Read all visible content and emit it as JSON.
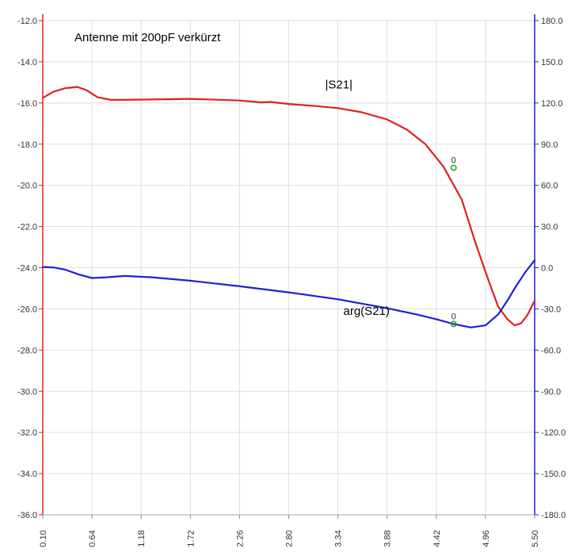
{
  "chart_data": {
    "type": "line",
    "title": "Antenne mit 200pF verkürzt",
    "grid": true,
    "x_axis": {
      "range": [
        0.1,
        5.5
      ],
      "ticks": [
        "0.10",
        "0.64",
        "1.18",
        "1.72",
        "2.26",
        "2.80",
        "3.34",
        "3.88",
        "4.42",
        "4.96",
        "5.50"
      ]
    },
    "y_axis_left": {
      "range": [
        -36.0,
        -12.0
      ],
      "color": "#e02020",
      "ticks": [
        "-12.0",
        "-14.0",
        "-16.0",
        "-18.0",
        "-20.0",
        "-22.0",
        "-24.0",
        "-26.0",
        "-28.0",
        "-30.0",
        "-32.0",
        "-34.0",
        "-36.0"
      ]
    },
    "y_axis_right": {
      "range": [
        -180.0,
        180.0
      ],
      "color": "#2020d0",
      "ticks": [
        "180.0",
        "150.0",
        "120.0",
        "90.0",
        "60.0",
        "30.0",
        "0.0",
        "-30.0",
        "-60.0",
        "-90.0",
        "-120.0",
        "-150.0",
        "-180.0"
      ]
    },
    "series": [
      {
        "name": "|S21|",
        "axis": "left",
        "color": "#e02020",
        "x": [
          0.1,
          0.22,
          0.35,
          0.48,
          0.58,
          0.7,
          0.85,
          1.0,
          1.3,
          1.72,
          2.26,
          2.5,
          2.6,
          2.8,
          3.1,
          3.34,
          3.6,
          3.88,
          4.1,
          4.3,
          4.5,
          4.7,
          4.85,
          5.0,
          5.1,
          5.2,
          5.28,
          5.35,
          5.42,
          5.5
        ],
        "y": [
          -15.75,
          -15.45,
          -15.28,
          -15.22,
          -15.38,
          -15.72,
          -15.85,
          -15.85,
          -15.83,
          -15.8,
          -15.88,
          -15.97,
          -15.95,
          -16.05,
          -16.15,
          -16.25,
          -16.45,
          -16.8,
          -17.3,
          -18.0,
          -19.1,
          -20.7,
          -22.8,
          -24.7,
          -25.9,
          -26.5,
          -26.8,
          -26.7,
          -26.3,
          -25.6
        ]
      },
      {
        "name": "arg(S21)",
        "axis": "right",
        "color": "#2020d0",
        "x": [
          0.1,
          0.22,
          0.35,
          0.5,
          0.64,
          0.8,
          1.0,
          1.3,
          1.72,
          2.26,
          2.8,
          3.34,
          3.88,
          4.2,
          4.42,
          4.61,
          4.8,
          4.96,
          5.1,
          5.2,
          5.3,
          5.4,
          5.5
        ],
        "y": [
          0.5,
          0.2,
          -1.5,
          -5.0,
          -7.5,
          -7.0,
          -6.0,
          -7.0,
          -9.5,
          -13.5,
          -18.0,
          -23.0,
          -29.5,
          -34.0,
          -37.5,
          -41.0,
          -43.5,
          -42.0,
          -34.0,
          -24.0,
          -13.0,
          -3.0,
          5.5
        ]
      }
    ],
    "markers": [
      {
        "series": "|S21|",
        "label": "0",
        "x": 4.61,
        "y": -19.15
      },
      {
        "series": "arg(S21)",
        "label": "0",
        "x": 4.61,
        "y": -41.0
      }
    ],
    "annotations": [
      {
        "text": "|S21|",
        "x": 3.2,
        "y": -15.3
      },
      {
        "text": "arg(S21)",
        "x": 3.4,
        "y": -26.3
      }
    ],
    "marker_color": "#22aa22"
  }
}
